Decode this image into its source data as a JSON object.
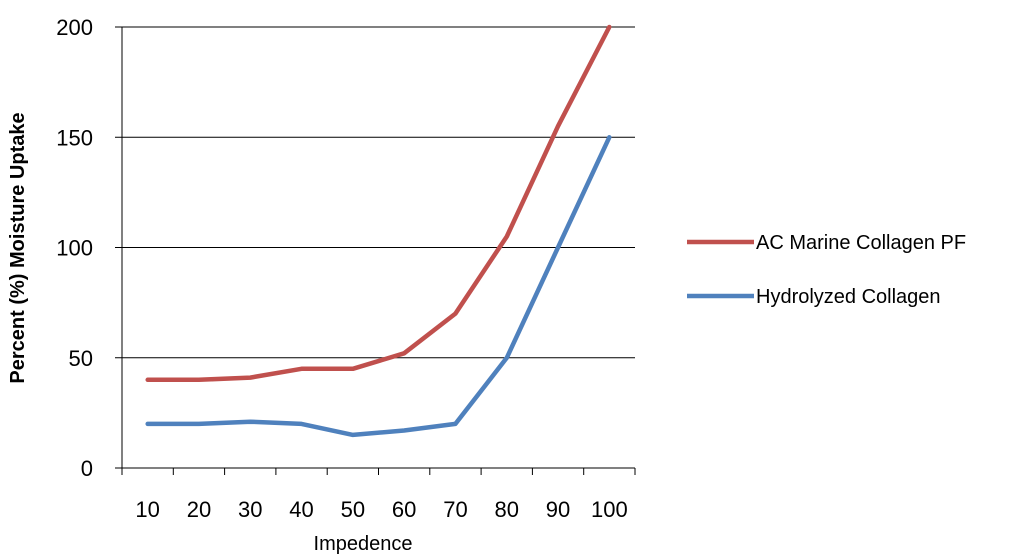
{
  "chart_data": {
    "type": "line",
    "title": "",
    "xlabel": "Impedence",
    "ylabel": "Percent (%) Moisture Uptake",
    "categories": [
      "10",
      "20",
      "30",
      "40",
      "50",
      "60",
      "70",
      "80",
      "90",
      "100"
    ],
    "ylim": [
      0,
      200
    ],
    "yticks": [
      "0",
      "50",
      "100",
      "150",
      "200"
    ],
    "ytick_values": [
      0,
      50,
      100,
      150,
      200
    ],
    "grid": true,
    "legend_position": "right",
    "series": [
      {
        "name": "AC Marine Collagen PF",
        "color": "#c0504d",
        "values": [
          40,
          40,
          41,
          45,
          45,
          52,
          70,
          105,
          155,
          200
        ]
      },
      {
        "name": "Hydrolyzed Collagen",
        "color": "#4f81bd",
        "values": [
          20,
          20,
          21,
          20,
          15,
          17,
          20,
          50,
          100,
          150
        ]
      }
    ]
  }
}
